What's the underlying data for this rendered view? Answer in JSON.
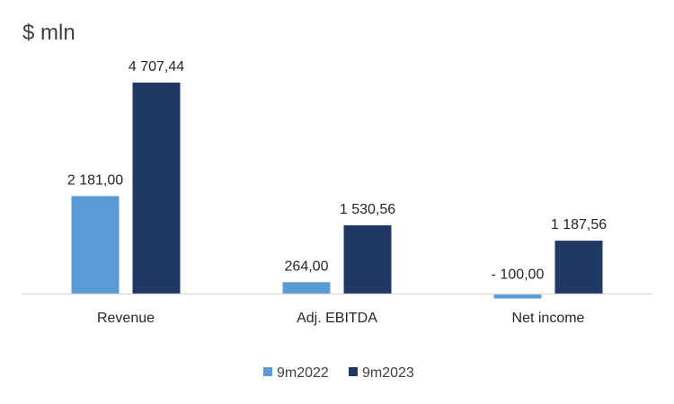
{
  "chart_data": {
    "type": "bar",
    "title": "$ mln",
    "categories": [
      "Revenue",
      "Adj. EBITDA",
      "Net income"
    ],
    "series": [
      {
        "name": "9m2022",
        "color": "#5B9BD5",
        "values": [
          2181.0,
          264.0,
          -100.0
        ],
        "labels": [
          "2 181,00",
          "264,00",
          "- 100,00"
        ]
      },
      {
        "name": "9m2023",
        "color": "#203864",
        "values": [
          4707.44,
          1530.56,
          1187.56
        ],
        "labels": [
          "4 707,44",
          "1 530,56",
          "1 187,56"
        ]
      }
    ],
    "ylim": [
      -100,
      4707.44
    ],
    "grid": false,
    "legend_position": "bottom",
    "baseline_color": "#D9D9D9"
  }
}
